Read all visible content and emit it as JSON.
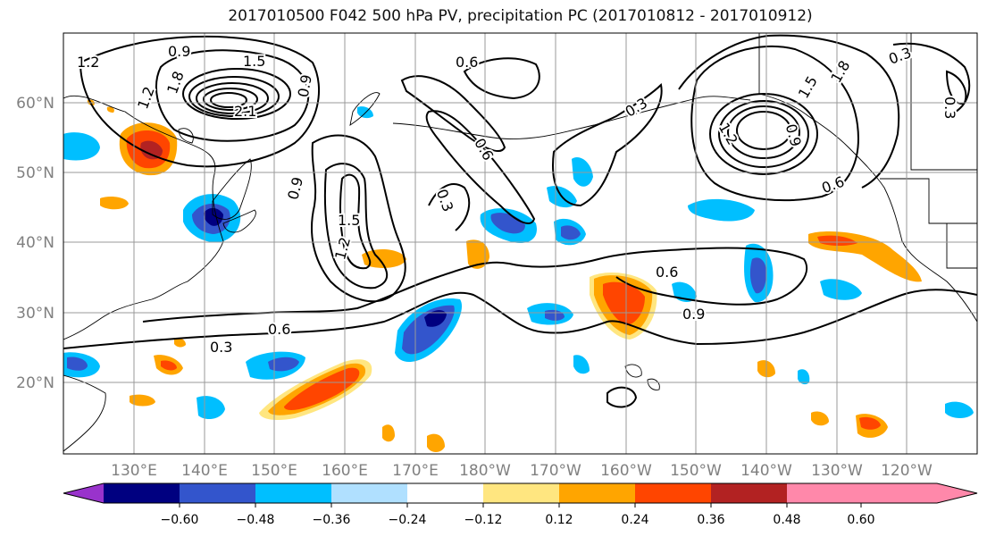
{
  "title": "2017010500 F042 500 hPa PV, precipitation PC (2017010812 - 2017010912)",
  "lat_labels": [
    "60°N",
    "50°N",
    "40°N",
    "30°N",
    "20°N"
  ],
  "lon_labels": [
    "130°E",
    "140°E",
    "150°E",
    "160°E",
    "170°E",
    "180°W",
    "170°W",
    "160°W",
    "150°W",
    "140°W",
    "130°W",
    "120°W"
  ],
  "colorbar": {
    "ticks": [
      "−0.60",
      "−0.48",
      "−0.36",
      "−0.24",
      "−0.12",
      "0.12",
      "0.24",
      "0.36",
      "0.48",
      "0.60"
    ],
    "colors": [
      "#9933cc",
      "#000080",
      "#3355cc",
      "#00bfff",
      "#b0e0ff",
      "#ffffff",
      "#ffe680",
      "#ffa500",
      "#ff4500",
      "#b22222",
      "#ff88aa"
    ]
  },
  "contour_labels": [
    {
      "text": "0.9",
      "id": "c1"
    },
    {
      "text": "1.2",
      "id": "c2"
    },
    {
      "text": "1.5",
      "id": "c3"
    },
    {
      "text": "1.8",
      "id": "c4"
    },
    {
      "text": "1.2",
      "id": "c5"
    },
    {
      "text": "2.1",
      "id": "c6"
    },
    {
      "text": "0.9",
      "id": "c7"
    },
    {
      "text": "0.6",
      "id": "c8"
    },
    {
      "text": "0.6",
      "id": "c9"
    },
    {
      "text": "0.3",
      "id": "c10"
    },
    {
      "text": "0.9",
      "id": "c11"
    },
    {
      "text": "1.5",
      "id": "c12"
    },
    {
      "text": "1.2",
      "id": "c13"
    },
    {
      "text": "0.6",
      "id": "c14"
    },
    {
      "text": "0.3",
      "id": "c15"
    },
    {
      "text": "0.6",
      "id": "c16"
    },
    {
      "text": "0.9",
      "id": "c17"
    },
    {
      "text": "0.3",
      "id": "c18"
    },
    {
      "text": "1.2",
      "id": "c19"
    },
    {
      "text": "0.9",
      "id": "c20"
    },
    {
      "text": "1.5",
      "id": "c21"
    },
    {
      "text": "1.8",
      "id": "c22"
    },
    {
      "text": "0.6",
      "id": "c23"
    },
    {
      "text": "0.3",
      "id": "c24"
    },
    {
      "text": "0.3",
      "id": "c25"
    }
  ]
}
